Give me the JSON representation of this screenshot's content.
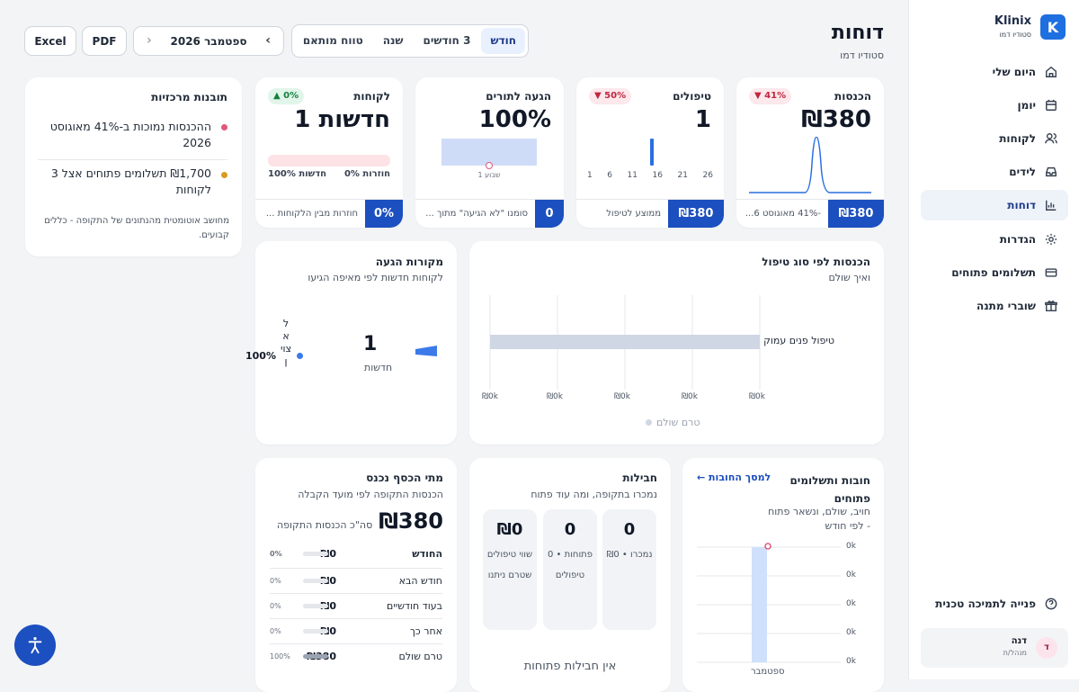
{
  "app": {
    "name": "Klinix",
    "studio": "סטודיו דמו"
  },
  "sidebar": {
    "items": [
      {
        "label": "היום שלי",
        "icon": "home-icon"
      },
      {
        "label": "יומן",
        "icon": "calendar-icon"
      },
      {
        "label": "לקוחות",
        "icon": "users-icon"
      },
      {
        "label": "לידים",
        "icon": "inbox-icon"
      },
      {
        "label": "דוחות",
        "icon": "chart-icon",
        "active": true
      },
      {
        "label": "הגדרות",
        "icon": "gear-icon"
      },
      {
        "label": "תשלומים פתוחים",
        "icon": "card-icon"
      },
      {
        "label": "שוברי מתנה",
        "icon": "gift-icon"
      }
    ],
    "support": "פנייה לתמיכה טכנית",
    "user": {
      "name": "דנה",
      "role": "מנהל/ת",
      "initial": "ד"
    }
  },
  "header": {
    "title": "דוחות",
    "subtitle": "סטודיו דמו"
  },
  "toolbar": {
    "periods": [
      "חודש",
      "3 חודשים",
      "שנה",
      "טווח מותאם"
    ],
    "active_period": "חודש",
    "month": "ספטמבר 2026",
    "pdf": "PDF",
    "excel": "Excel"
  },
  "kpis": {
    "revenue": {
      "label": "הכנסות",
      "value": "₪380",
      "badge": "▼ 41%",
      "foot_value": "₪380",
      "foot_text": "-41% מאוגוסט 6..."
    },
    "treatments": {
      "label": "טיפולים",
      "value": "1",
      "badge": "▼ 50%",
      "ticks": [
        "26",
        "21",
        "16",
        "11",
        "6",
        "1"
      ],
      "foot_value": "₪380",
      "foot_text": "ממוצע לטיפול"
    },
    "arrival": {
      "label": "הגעה לתורים",
      "value": "100%",
      "week": "שבוע 1",
      "foot_value": "0",
      "foot_text": "סומנו \"לא הגיעה\" מתוך ..."
    },
    "new_clients": {
      "label": "לקוחות",
      "value": "1 חדשות",
      "badge": "▲ 0%",
      "legend_new": "חדשות 100%",
      "legend_return": "חוזרות 0%",
      "foot_value": "0%",
      "foot_text": "חוזרות מבין הלקוחות ..."
    }
  },
  "insights": {
    "title": "תובנות מרכזיות",
    "items": [
      {
        "text": "ההכנסות נמוכות ב-41% מאוגוסט 2026",
        "color": "#e0577a"
      },
      {
        "text": "₪1,700 תשלומים פתוחים אצל 3 לקוחות",
        "color": "#d99a1e"
      }
    ],
    "note": "מחושב אוטומטית מהנתונים של התקופה - כללים קבועים."
  },
  "revenue_by_type": {
    "title": "הכנסות לפי סוג טיפול",
    "subtitle": "ואיך שולם",
    "legend": "טרם שולם",
    "chart_data": {
      "type": "bar",
      "orientation": "horizontal",
      "categories": [
        "טיפול פנים עמוק"
      ],
      "series": [
        {
          "name": "טרם שולם",
          "values": [
            380
          ]
        }
      ],
      "ticks": [
        "₪0k",
        "₪0k",
        "₪0k",
        "₪0k",
        "₪0k"
      ]
    }
  },
  "sources": {
    "title": "מקורות הגעה",
    "subtitle": "לקוחות חדשות לפי מאיפה הגיעו",
    "count": "1",
    "count_label": "חדשות",
    "percent": "100%",
    "vertical_label": "לא צוין",
    "chart_data": {
      "type": "pie",
      "categories": [
        "לא צוין"
      ],
      "values": [
        100
      ]
    }
  },
  "debts": {
    "title": "חובות ותשלומים פתוחים",
    "subtitle": "חויב, שולם, ונשאר פתוח - לפי חודש",
    "link": "← למסך החובות",
    "xlabel": "ספטמבר",
    "yticks": [
      "0k",
      "0k",
      "0k",
      "0k",
      "0k"
    ],
    "chart_data": {
      "type": "bar",
      "categories": [
        "ספטמבר"
      ],
      "values": [
        1
      ]
    }
  },
  "packages": {
    "title": "חבילות",
    "subtitle": "נמכרו בתקופה, ומה עוד פתוח",
    "cards": [
      {
        "value": "0",
        "desc": "נמכרו • ₪0"
      },
      {
        "value": "0",
        "desc": "פתוחות • 0 טיפולים"
      },
      {
        "value": "₪0",
        "desc": "שווי טיפולים שטרם ניתנו"
      }
    ],
    "empty": "אין חבילות פתוחות"
  },
  "cashflow": {
    "title": "מתי הכסף נכנס",
    "subtitle": "הכנסות התקופה לפי מועד הקבלה",
    "total": "₪380",
    "total_label": "סה\"כ הכנסות התקופה",
    "header": {
      "month": "החודש",
      "value": "₪0",
      "pct": "0%"
    },
    "rows": [
      {
        "month": "חודש הבא",
        "value": "₪0",
        "pct": "0%",
        "fill": 0
      },
      {
        "month": "בעוד חודשיים",
        "value": "₪0",
        "pct": "0%",
        "fill": 0
      },
      {
        "month": "אחר כך",
        "value": "₪0",
        "pct": "0%",
        "fill": 0
      },
      {
        "month": "טרם שולם",
        "value": "₪380",
        "pct": "100%",
        "fill": 1
      }
    ]
  },
  "accessibility": {
    "icon": "accessibility-icon"
  }
}
